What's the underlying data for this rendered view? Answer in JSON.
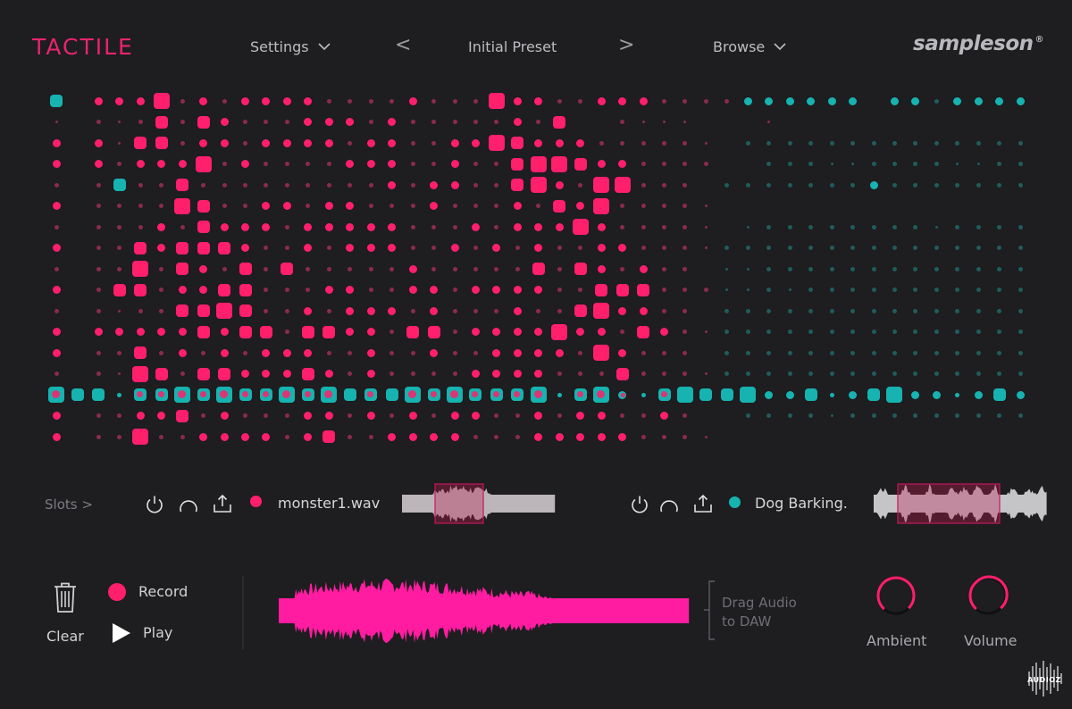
{
  "app": {
    "title": "TACTILE",
    "brand_color": "#e8246e",
    "logo": "sampleson",
    "logo_mark": "®"
  },
  "header": {
    "settings_label": "Settings",
    "prev_label": "<",
    "preset_name": "Initial Preset",
    "next_label": ">",
    "browse_label": "Browse"
  },
  "colors": {
    "pink": "#ff1f6a",
    "teal": "#16b3b0",
    "dim_pink": "#8b2a4f",
    "dim_teal": "#1f5c5c",
    "background": "#1e1d20"
  },
  "grid": {
    "columns": 48,
    "rows": 17,
    "description_levels": "0=none,1=tiny,2=small,3=medium,4=large,5=xlarge",
    "pink_rows": [
      "030333523233332222322253322333222222000000000000",
      "010212424322233323222223240021110001000000000000",
      "030314423323333233223354333222221000000000000000",
      "030323335232222333223224554332222000000000000000",
      "020222242222222223233224532552220000000000000000",
      "030222254223323322232223243522221000000000000000",
      "020222324333233333222323335322221000000000000000",
      "030224344432232333223232322332221000000000000000",
      "020225243242422222322222424323220000000000000000",
      "030244233442223322332333322444222000000000000000",
      "020212244542232333232223224533220000000000000000",
      "030333334344244332442333353324321000000000000000",
      "030224232323332232232233332532220000000000000000",
      "020215424433343232222333322242221000000000000000",
      "030223434344433242343333324332320000000000000000",
      "030223342322233232323322323322320000000000000000",
      "030225223333234223333222333332221000000000000000"
    ],
    "teal_rows": [
      "040000000000000000000000000000000033333303323333",
      "000000000000000000000000000000000000000000000000",
      "000000000000000000000000000000000022222222222222",
      "000000000000000000000000000000000002221122221122",
      "000040000000000000000000000000000222222232222222",
      "000000000000000000000000000000000000000000000000",
      "000000000000000000000000000000000012222222212222",
      "000000000000000000000000000000000222222222222222",
      "000000000000000000000000000000000112222222222222",
      "000000000000000000000000000000000112122222222222",
      "000000000000000000000000000000000222222222222222",
      "000000000000000000000000000000000222222222222222",
      "000000000000000000000000000000000222222222222222",
      "000000000000000000000000000000000222222222222222",
      "054424454544545444545444524532454453342345332343",
      "000000000000000000000000000000000022221222222222",
      "000000000000000000000000000000000000000000000000"
    ]
  },
  "slots": {
    "label": "Slots >",
    "slot1": {
      "file": "monster1.wav",
      "color": "#ff1f6a"
    },
    "slot2": {
      "file": "Dog Barking.",
      "color": "#16b3b0"
    }
  },
  "transport": {
    "clear_label": "Clear",
    "record_label": "Record",
    "play_label": "Play",
    "drag_line1": "Drag Audio",
    "drag_line2": "to DAW"
  },
  "knobs": {
    "ambient_label": "Ambient",
    "volume_label": "Volume",
    "ambient_value": 0.28,
    "volume_value": 0.35
  },
  "watermark": "AUDIOZ"
}
